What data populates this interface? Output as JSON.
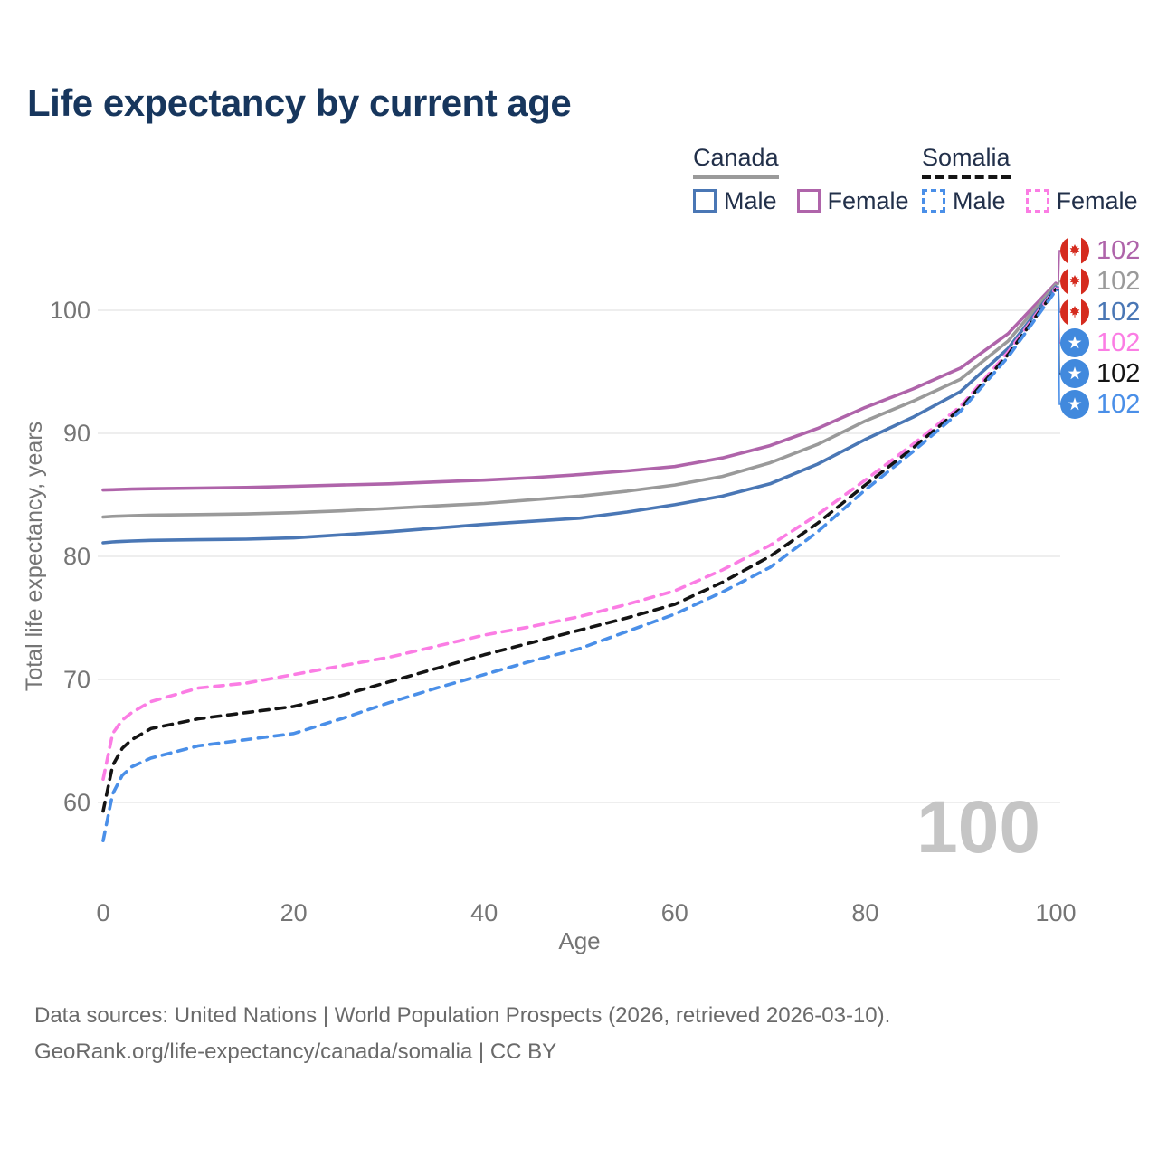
{
  "header": {
    "title": "Life expectancy by current age"
  },
  "legend": {
    "canada": {
      "label": "Canada",
      "male_label": "Male",
      "female_label": "Female"
    },
    "somalia": {
      "label": "Somalia",
      "male_label": "Male",
      "female_label": "Female"
    }
  },
  "theme": {
    "title_color": "#17365d",
    "legend_text": "#22304a",
    "axis_color": "#757575",
    "grid_color": "#e8e8e8",
    "footer_color": "#6a6a6a",
    "watermark_color": "#c5c5c5",
    "canada_flag_red": "#d52b1e",
    "somalia_flag_blue": "#4189dd"
  },
  "chart_data": {
    "type": "line",
    "title": "Life expectancy by current age",
    "xlabel": "Age",
    "ylabel": "Total life expectancy, years",
    "xlim": [
      0,
      100
    ],
    "ylim": [
      56,
      103
    ],
    "xticks": [
      0,
      20,
      40,
      60,
      80,
      100
    ],
    "yticks": [
      60,
      70,
      80,
      90,
      100
    ],
    "grid": "horizontal",
    "legend_position": "top-right",
    "watermark": "100",
    "x": [
      0,
      1,
      2,
      3,
      5,
      10,
      15,
      20,
      25,
      30,
      35,
      40,
      45,
      50,
      55,
      60,
      65,
      70,
      75,
      80,
      85,
      90,
      95,
      100
    ],
    "series": [
      {
        "name": "Canada Female",
        "country": "canada",
        "style": "solid",
        "color": "#af64aa",
        "end_label": "102",
        "values": [
          85.4,
          85.42,
          85.45,
          85.47,
          85.5,
          85.55,
          85.6,
          85.7,
          85.8,
          85.9,
          86.05,
          86.2,
          86.4,
          86.65,
          86.95,
          87.3,
          88.0,
          89.0,
          90.4,
          92.1,
          93.6,
          95.3,
          98.1,
          102.2
        ]
      },
      {
        "name": "Canada Both sexes",
        "country": "canada",
        "style": "solid",
        "color": "#9a9a9a",
        "end_label": "102",
        "values": [
          83.2,
          83.25,
          83.28,
          83.3,
          83.35,
          83.4,
          83.45,
          83.55,
          83.7,
          83.9,
          84.1,
          84.3,
          84.6,
          84.9,
          85.3,
          85.8,
          86.5,
          87.6,
          89.1,
          91.0,
          92.6,
          94.4,
          97.5,
          102.1
        ]
      },
      {
        "name": "Canada Male",
        "country": "canada",
        "style": "solid",
        "color": "#4a77b5",
        "end_label": "102",
        "values": [
          81.1,
          81.18,
          81.22,
          81.25,
          81.3,
          81.35,
          81.4,
          81.5,
          81.75,
          82.0,
          82.3,
          82.6,
          82.85,
          83.1,
          83.6,
          84.2,
          84.9,
          85.9,
          87.5,
          89.5,
          91.3,
          93.4,
          96.9,
          101.9
        ]
      },
      {
        "name": "Somalia Female",
        "country": "somalia",
        "style": "dashed",
        "color": "#fb7de4",
        "end_label": "102",
        "values": [
          61.9,
          65.6,
          66.7,
          67.3,
          68.2,
          69.3,
          69.7,
          70.4,
          71.1,
          71.8,
          72.7,
          73.6,
          74.3,
          75.1,
          76.1,
          77.2,
          78.9,
          80.9,
          83.4,
          86.2,
          89.1,
          92.2,
          96.6,
          101.8
        ]
      },
      {
        "name": "Somalia Both sexes",
        "country": "somalia",
        "style": "dashed",
        "color": "#141414",
        "end_label": "102",
        "values": [
          59.3,
          63.0,
          64.4,
          65.1,
          66.0,
          66.8,
          67.3,
          67.8,
          68.7,
          69.8,
          70.9,
          72.0,
          73.0,
          74.0,
          75.0,
          76.1,
          77.9,
          80.0,
          82.7,
          85.8,
          88.8,
          92.0,
          96.4,
          101.7
        ]
      },
      {
        "name": "Somalia Male",
        "country": "somalia",
        "style": "dashed",
        "color": "#4a8fe8",
        "end_label": "102",
        "values": [
          56.9,
          60.7,
          62.2,
          62.9,
          63.6,
          64.6,
          65.1,
          65.6,
          66.8,
          68.1,
          69.3,
          70.4,
          71.5,
          72.5,
          73.9,
          75.3,
          77.1,
          79.1,
          82.0,
          85.4,
          88.5,
          91.8,
          96.2,
          101.6
        ]
      }
    ]
  },
  "footer": {
    "line1": "Data sources: United Nations | World Population Prospects (2026, retrieved 2026-03-10).",
    "line2": "GeoRank.org/life-expectancy/canada/somalia | CC BY"
  }
}
